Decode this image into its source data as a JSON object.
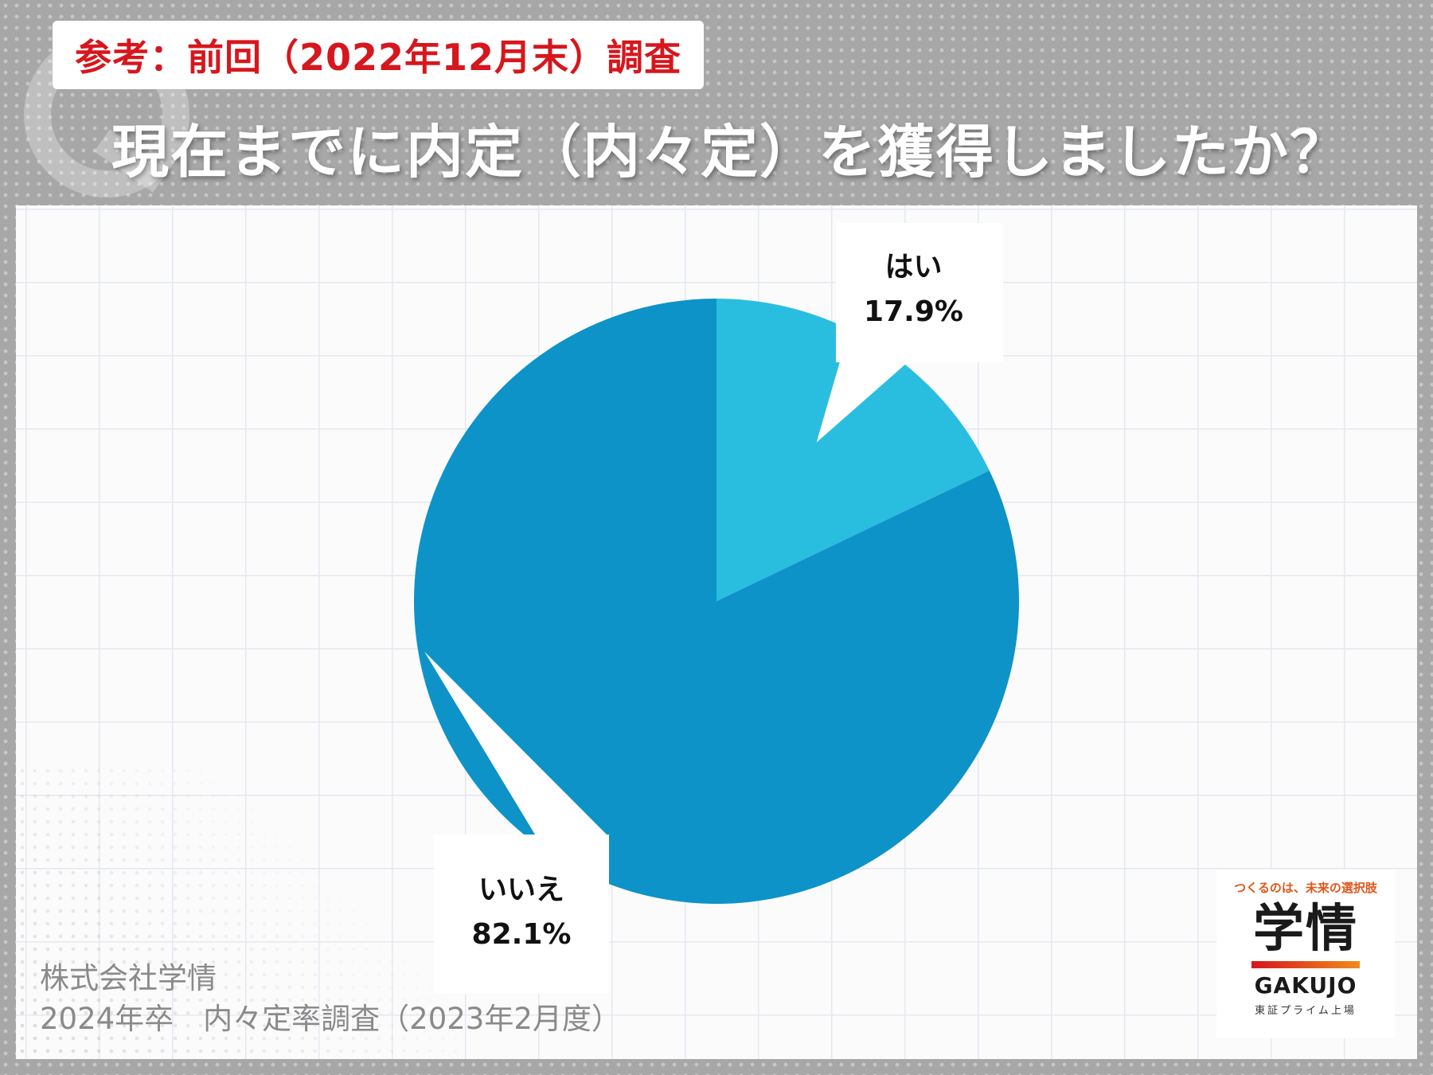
{
  "header": {
    "reference_badge": "参考：前回（2022年12月末）調査",
    "question_title": "現在までに内定（内々定）を獲得しましたか？"
  },
  "chart_data": {
    "type": "pie",
    "title": "現在までに内定（内々定）を獲得しましたか？",
    "categories": [
      "はい",
      "いいえ"
    ],
    "values": [
      17.9,
      82.1
    ],
    "value_labels": [
      "17.9%",
      "82.1%"
    ],
    "colors": [
      "#29bee0",
      "#0d93c8"
    ],
    "start_angle_deg": 0,
    "direction": "clockwise",
    "legend": "none"
  },
  "source": {
    "line1": "株式会社学情",
    "line2": "2024年卒　内々定率調査（2023年2月度）"
  },
  "logo": {
    "tagline": "つくるのは、未来の選択肢",
    "mark": "学情",
    "name": "GAKUJO",
    "sub": "東証プライム上場"
  }
}
